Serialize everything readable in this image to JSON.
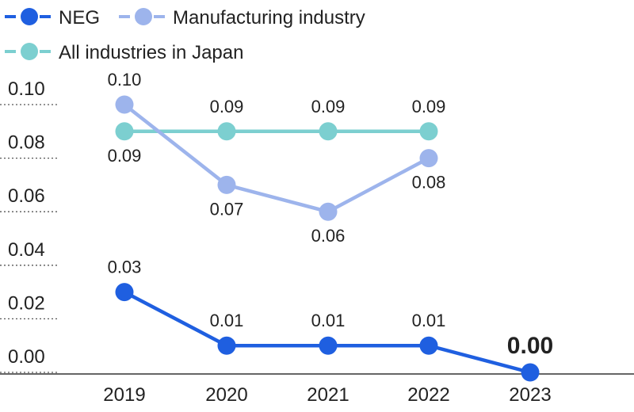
{
  "chart_data": {
    "type": "line",
    "title": "",
    "xlabel": "",
    "ylabel": "",
    "x": [
      "2019",
      "2020",
      "2021",
      "2022",
      "2023"
    ],
    "ylim": [
      0.0,
      0.1
    ],
    "y_ticks": [
      "0.10",
      "0.08",
      "0.06",
      "0.04",
      "0.02",
      "0.00"
    ],
    "grid": "dotted y-axis tick marks at left",
    "legend_position": "top-left",
    "series": [
      {
        "name": "NEG",
        "color": "#1f5fe0",
        "values": [
          0.03,
          0.01,
          0.01,
          0.01,
          0.0
        ],
        "labels": [
          "0.03",
          "0.01",
          "0.01",
          "0.01",
          "0.00"
        ],
        "highlight_last_label": true
      },
      {
        "name": "Manufacturing industry",
        "color": "#9db4ec",
        "values": [
          0.1,
          0.07,
          0.06,
          0.08,
          null
        ],
        "labels": [
          "0.10",
          "0.07",
          "0.06",
          "0.08",
          null
        ]
      },
      {
        "name": "All industries in Japan",
        "color": "#7ccfd0",
        "values": [
          0.09,
          0.09,
          0.09,
          0.09,
          null
        ],
        "labels": [
          "0.09",
          "0.09",
          "0.09",
          "0.09",
          null
        ]
      }
    ]
  }
}
